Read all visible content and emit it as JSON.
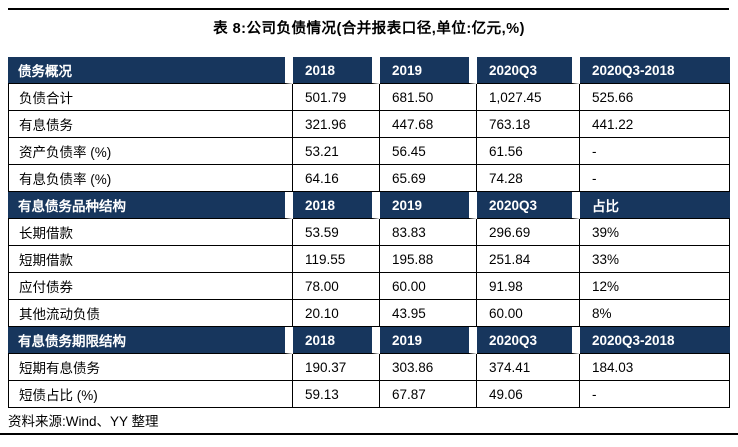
{
  "page": {
    "title": "表 8:公司负债情况(合并报表口径,单位:亿元,%)",
    "source_note": "资料来源:Wind、YY 整理"
  },
  "colors": {
    "header_bg": "#17365d",
    "header_text": "#ffffff",
    "border": "#000000",
    "body_text": "#000000",
    "page_bg": "#ffffff"
  },
  "table": {
    "sections": [
      {
        "header": [
          "债务概况",
          "2018",
          "2019",
          "2020Q3",
          "2020Q3-2018"
        ],
        "rows": [
          [
            "负债合计",
            "501.79",
            "681.50",
            "1,027.45",
            "525.66"
          ],
          [
            "有息债务",
            "321.96",
            "447.68",
            "763.18",
            "441.22"
          ],
          [
            "资产负债率 (%)",
            "53.21",
            "56.45",
            "61.56",
            "-"
          ],
          [
            "有息负债率 (%)",
            "64.16",
            "65.69",
            "74.28",
            "-"
          ]
        ]
      },
      {
        "header": [
          "有息债务品种结构",
          "2018",
          "2019",
          "2020Q3",
          "占比"
        ],
        "rows": [
          [
            "长期借款",
            "53.59",
            "83.83",
            "296.69",
            "39%"
          ],
          [
            "短期借款",
            "119.55",
            "195.88",
            "251.84",
            "33%"
          ],
          [
            "应付债券",
            "78.00",
            "60.00",
            "91.98",
            "12%"
          ],
          [
            "其他流动负债",
            "20.10",
            "43.95",
            "60.00",
            "8%"
          ]
        ]
      },
      {
        "header": [
          "有息债务期限结构",
          "2018",
          "2019",
          "2020Q3",
          "2020Q3-2018"
        ],
        "rows": [
          [
            "短期有息债务",
            "190.37",
            "303.86",
            "374.41",
            "184.03"
          ],
          [
            "短债占比 (%)",
            "59.13",
            "67.87",
            "49.06",
            "-"
          ]
        ]
      }
    ]
  }
}
